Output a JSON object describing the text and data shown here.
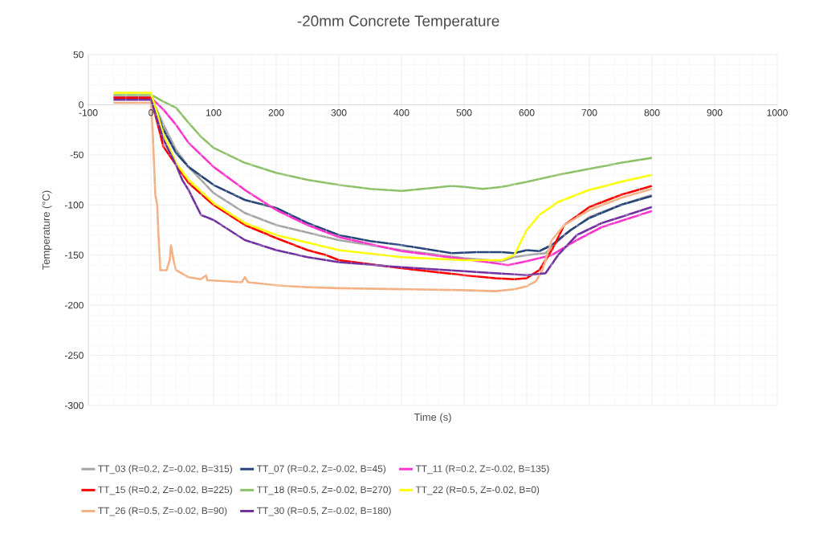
{
  "chart_data": {
    "type": "line",
    "title": "-20mm Concrete Temperature",
    "xlabel": "Time (s)",
    "ylabel": "Temperature (°C)",
    "xlim": [
      -100,
      1000
    ],
    "ylim": [
      -300,
      50
    ],
    "xticks": [
      -100,
      0,
      100,
      200,
      300,
      400,
      500,
      600,
      700,
      800,
      900,
      1000
    ],
    "yticks": [
      -300,
      -250,
      -200,
      -150,
      -100,
      -50,
      0,
      50
    ],
    "grid": true,
    "legend": "bottom",
    "series": [
      {
        "name": "TT_03 (R=0.2, Z=-0.02, B=315)",
        "color": "#a5a5a5",
        "x": [
          -60,
          0,
          20,
          40,
          60,
          100,
          150,
          200,
          300,
          400,
          500,
          560,
          580,
          600,
          630,
          660,
          700,
          750,
          800
        ],
        "values": [
          8,
          8,
          -20,
          -45,
          -62,
          -88,
          -108,
          -120,
          -135,
          -145,
          -153,
          -156,
          -152,
          -150,
          -148,
          -130,
          -112,
          -100,
          -90
        ]
      },
      {
        "name": "TT_07 (R=0.2, Z=-0.02, B=45)",
        "color": "#264478",
        "x": [
          -60,
          0,
          20,
          40,
          60,
          100,
          150,
          200,
          250,
          300,
          350,
          400,
          450,
          480,
          520,
          560,
          580,
          600,
          620,
          640,
          670,
          700,
          750,
          800
        ],
        "values": [
          7,
          7,
          -25,
          -48,
          -62,
          -80,
          -95,
          -103,
          -118,
          -130,
          -136,
          -140,
          -145,
          -148,
          -147,
          -147,
          -148,
          -145,
          -146,
          -140,
          -125,
          -113,
          -100,
          -91
        ]
      },
      {
        "name": "TT_11 (R=0.2, Z=-0.02, B=135)",
        "color": "#ff33cc",
        "x": [
          -60,
          0,
          20,
          40,
          60,
          100,
          150,
          200,
          250,
          300,
          400,
          500,
          550,
          570,
          600,
          640,
          680,
          720,
          760,
          800
        ],
        "values": [
          7,
          7,
          -5,
          -20,
          -38,
          -62,
          -85,
          -105,
          -120,
          -132,
          -146,
          -154,
          -158,
          -160,
          -156,
          -150,
          -135,
          -122,
          -114,
          -106
        ]
      },
      {
        "name": "TT_15 (R=0.2, Z=-0.02, B=225)",
        "color": "#ff0000",
        "x": [
          -60,
          0,
          20,
          40,
          60,
          100,
          150,
          200,
          250,
          280,
          300,
          400,
          500,
          550,
          580,
          600,
          620,
          640,
          660,
          700,
          750,
          800
        ],
        "values": [
          7,
          7,
          -42,
          -60,
          -78,
          -100,
          -120,
          -133,
          -145,
          -150,
          -155,
          -163,
          -170,
          -173,
          -174,
          -173,
          -165,
          -145,
          -120,
          -102,
          -90,
          -81
        ]
      },
      {
        "name": "TT_18 (R=0.5, Z=-0.02, B=270)",
        "color": "#8cc168",
        "x": [
          -60,
          0,
          20,
          40,
          60,
          80,
          100,
          150,
          200,
          250,
          300,
          350,
          400,
          450,
          480,
          500,
          530,
          560,
          600,
          650,
          700,
          750,
          800
        ],
        "values": [
          10,
          10,
          3,
          -3,
          -18,
          -32,
          -43,
          -58,
          -68,
          -75,
          -80,
          -84,
          -86,
          -83,
          -81,
          -82,
          -84,
          -82,
          -77,
          -70,
          -64,
          -58,
          -53
        ]
      },
      {
        "name": "TT_22 (R=0.5, Z=-0.02, B=0)",
        "color": "#ffff00",
        "x": [
          -60,
          0,
          20,
          40,
          60,
          100,
          150,
          200,
          300,
          400,
          500,
          560,
          580,
          600,
          620,
          650,
          700,
          750,
          800
        ],
        "values": [
          12,
          12,
          -30,
          -58,
          -75,
          -98,
          -118,
          -130,
          -145,
          -152,
          -155,
          -155,
          -150,
          -125,
          -110,
          -97,
          -85,
          -77,
          -70
        ]
      },
      {
        "name": "TT_26 (R=0.5, Z=-0.02, B=90)",
        "color": "#f4b183",
        "x": [
          -60,
          0,
          3,
          5,
          7,
          10,
          12,
          15,
          25,
          30,
          32,
          36,
          40,
          60,
          80,
          88,
          90,
          120,
          145,
          150,
          155,
          200,
          250,
          300,
          400,
          500,
          550,
          580,
          600,
          615,
          625,
          640,
          660,
          700,
          750,
          800
        ],
        "values": [
          2,
          2,
          -30,
          -60,
          -90,
          -100,
          -130,
          -165,
          -165,
          -155,
          -140,
          -155,
          -165,
          -172,
          -174,
          -170,
          -175,
          -176,
          -177,
          -172,
          -177,
          -180,
          -182,
          -183,
          -184,
          -185,
          -186,
          -184,
          -181,
          -176,
          -165,
          -135,
          -120,
          -105,
          -93,
          -84
        ]
      },
      {
        "name": "TT_30 (R=0.5, Z=-0.02, B=180)",
        "color": "#7030a0",
        "x": [
          -60,
          0,
          20,
          40,
          50,
          60,
          80,
          100,
          150,
          200,
          250,
          300,
          400,
          500,
          550,
          600,
          630,
          650,
          680,
          720,
          760,
          800
        ],
        "values": [
          5,
          5,
          -35,
          -60,
          -75,
          -85,
          -110,
          -115,
          -135,
          -145,
          -152,
          -157,
          -162,
          -166,
          -168,
          -170,
          -168,
          -150,
          -130,
          -118,
          -110,
          -102
        ]
      }
    ]
  }
}
